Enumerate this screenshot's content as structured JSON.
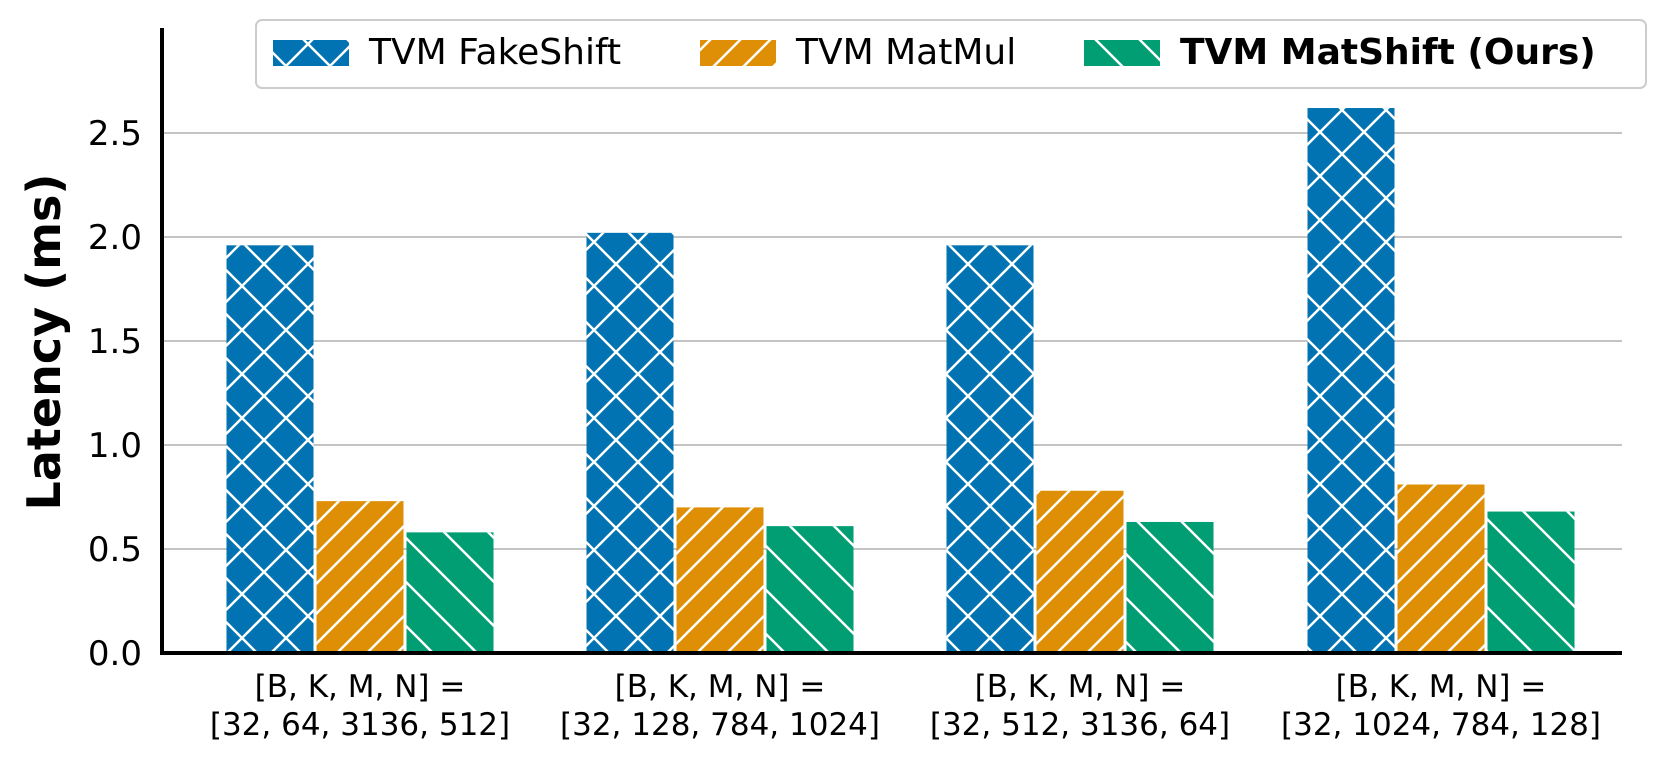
{
  "chart_data": {
    "type": "bar",
    "ylabel": "Latency (ms)",
    "xlabel": "",
    "ylim": [
      0,
      3.0
    ],
    "yticks": [
      "0.0",
      "0.5",
      "1.0",
      "1.5",
      "2.0",
      "2.5"
    ],
    "grid": "horizontal",
    "legend_position": "top",
    "categories": [
      [
        "[B, K, M, N] =",
        "[32, 64, 3136, 512]"
      ],
      [
        "[B, K, M, N] =",
        "[32, 128, 784, 1024]"
      ],
      [
        "[B, K, M, N] =",
        "[32, 512, 3136, 64]"
      ],
      [
        "[B, K, M, N] =",
        "[32, 1024, 784, 128]"
      ]
    ],
    "series": [
      {
        "name": "TVM FakeShift",
        "color": "#0173b2",
        "hatch": "x",
        "bold": false,
        "values": [
          1.96,
          2.02,
          1.96,
          2.62
        ]
      },
      {
        "name": "TVM MatMul",
        "color": "#de8f05",
        "hatch": "/",
        "bold": false,
        "values": [
          0.73,
          0.7,
          0.78,
          0.81
        ]
      },
      {
        "name": "TVM MatShift (Ours)",
        "color": "#029e73",
        "hatch": "\\",
        "bold": true,
        "values": [
          0.58,
          0.61,
          0.63,
          0.68
        ]
      }
    ]
  }
}
